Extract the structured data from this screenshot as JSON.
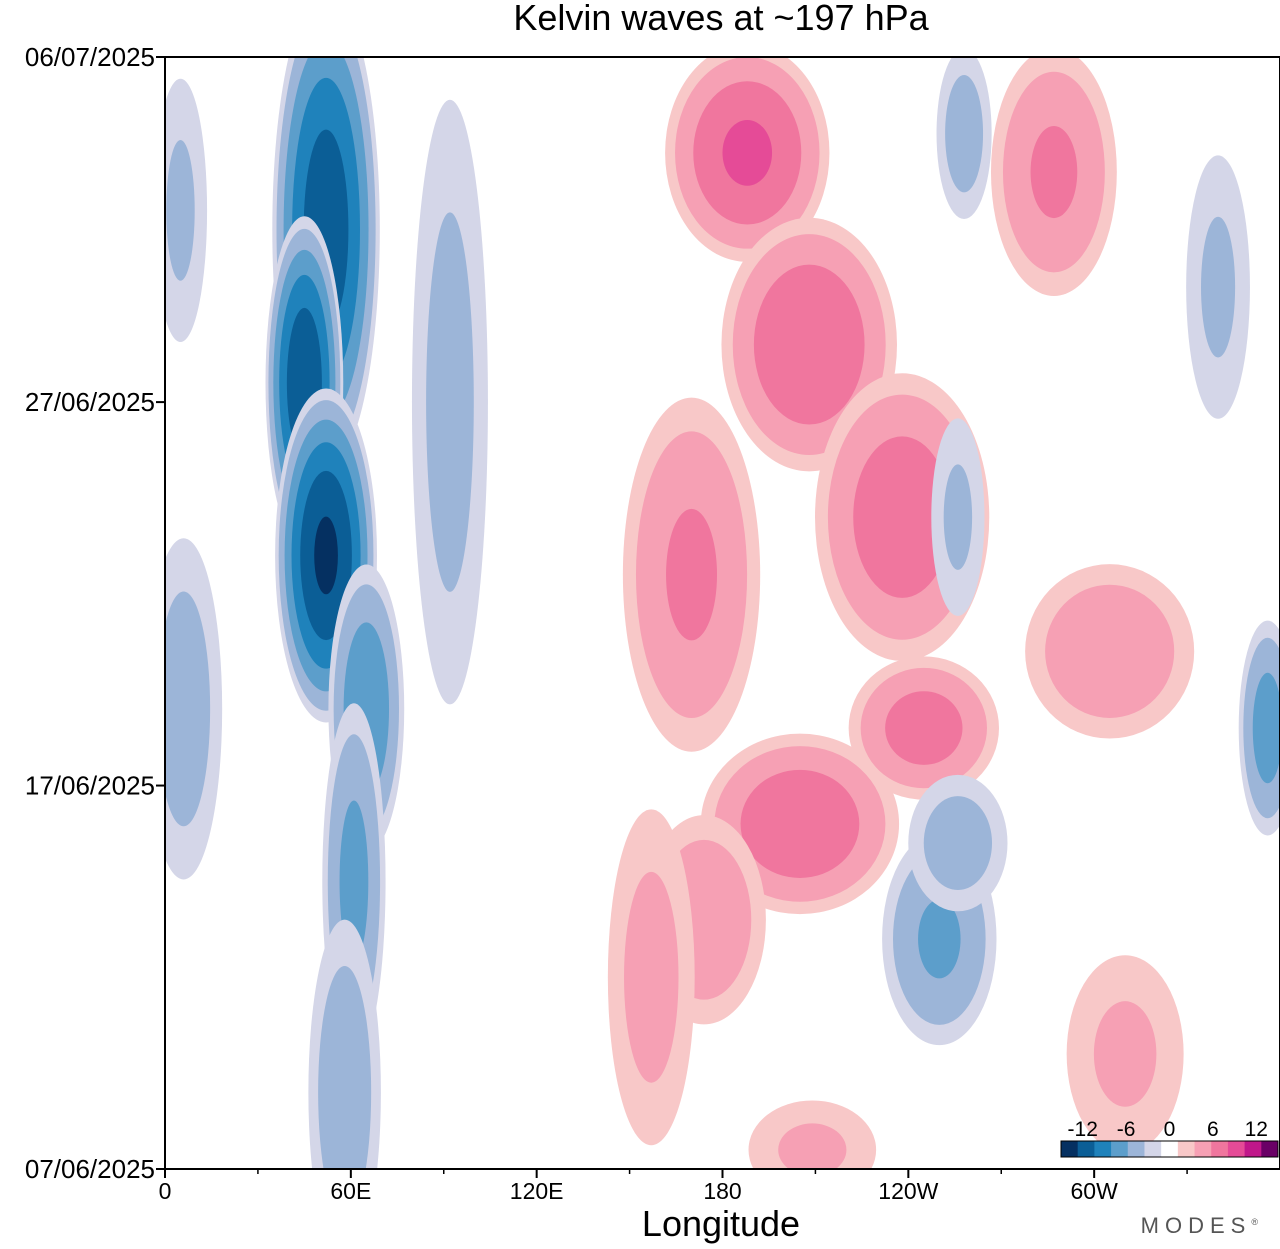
{
  "chart_data": {
    "type": "heatmap",
    "title": "Kelvin waves at ~197 hPa",
    "xlabel": "Longitude",
    "ylabel": "",
    "x_ticks": [
      {
        "label": "0",
        "lon": 0
      },
      {
        "label": "60E",
        "lon": 60
      },
      {
        "label": "120E",
        "lon": 120
      },
      {
        "label": "180",
        "lon": 180
      },
      {
        "label": "120W",
        "lon": 240
      },
      {
        "label": "60W",
        "lon": 300
      }
    ],
    "x_minor_step": 30,
    "xlim": [
      0,
      360
    ],
    "y_ticks": [
      {
        "label": "07/06/2025",
        "day": 0
      },
      {
        "label": "17/06/2025",
        "day": 10
      },
      {
        "label": "27/06/2025",
        "day": 20
      },
      {
        "label": "06/07/2025",
        "day": 29
      }
    ],
    "ylim_days": [
      0,
      29
    ],
    "colorbar": {
      "labels": [
        {
          "label": "-12",
          "value": -12
        },
        {
          "label": "-6",
          "value": -6
        },
        {
          "label": "0",
          "value": 0
        },
        {
          "label": "6",
          "value": 6
        },
        {
          "label": "12",
          "value": 12
        }
      ],
      "levels": [
        -15,
        -12,
        -9,
        -6,
        -3,
        -1,
        1,
        3,
        6,
        9,
        12,
        15
      ],
      "colors": [
        "#053061",
        "#0b5e96",
        "#1f82bb",
        "#5c9ecb",
        "#9cb5d8",
        "#d4d6e8",
        "#ffffff",
        "#f8c8c8",
        "#f6a0b4",
        "#f0769e",
        "#e54b97",
        "#c0178a",
        "#6a0066"
      ]
    },
    "anomalies": [
      {
        "lon": 52,
        "day": 24.5,
        "dlon": 18,
        "ddays": 6.5,
        "amp": -13.5
      },
      {
        "lon": 45,
        "day": 20.5,
        "dlon": 13,
        "ddays": 4.5,
        "amp": -14
      },
      {
        "lon": 52,
        "day": 16,
        "dlon": 17,
        "ddays": 4.5,
        "amp": -15
      },
      {
        "lon": 65,
        "day": 12,
        "dlon": 13,
        "ddays": 4,
        "amp": -8
      },
      {
        "lon": 61,
        "day": 7.5,
        "dlon": 11,
        "ddays": 5,
        "amp": -6.5
      },
      {
        "lon": 58,
        "day": 2,
        "dlon": 13,
        "ddays": 5,
        "amp": -4.5
      },
      {
        "lon": 92,
        "day": 20,
        "dlon": 14,
        "ddays": 9,
        "amp": -3.5
      },
      {
        "lon": 6,
        "day": 12,
        "dlon": 14,
        "ddays": 5,
        "amp": -4
      },
      {
        "lon": 5,
        "day": 25,
        "dlon": 10,
        "ddays": 4,
        "amp": -3
      },
      {
        "lon": 188,
        "day": 26.5,
        "dlon": 28,
        "ddays": 3,
        "amp": 9
      },
      {
        "lon": 208,
        "day": 21.5,
        "dlon": 30,
        "ddays": 3.5,
        "amp": 8.5
      },
      {
        "lon": 238,
        "day": 17,
        "dlon": 30,
        "ddays": 4,
        "amp": 7.5
      },
      {
        "lon": 287,
        "day": 26,
        "dlon": 22,
        "ddays": 3.5,
        "amp": 6
      },
      {
        "lon": 170,
        "day": 15.5,
        "dlon": 24,
        "ddays": 5,
        "amp": 6
      },
      {
        "lon": 205,
        "day": 9,
        "dlon": 34,
        "ddays": 2.5,
        "amp": 8
      },
      {
        "lon": 174,
        "day": 6.5,
        "dlon": 22,
        "ddays": 3,
        "amp": 5
      },
      {
        "lon": 245,
        "day": 11.5,
        "dlon": 26,
        "ddays": 2,
        "amp": 7
      },
      {
        "lon": 305,
        "day": 13.5,
        "dlon": 30,
        "ddays": 2.5,
        "amp": 5
      },
      {
        "lon": 157,
        "day": 5,
        "dlon": 16,
        "ddays": 5,
        "amp": 3.5
      },
      {
        "lon": 209,
        "day": 0.5,
        "dlon": 24,
        "ddays": 1.5,
        "amp": 3
      },
      {
        "lon": 310,
        "day": 3,
        "dlon": 22,
        "ddays": 3,
        "amp": 3
      },
      {
        "lon": 250,
        "day": 6,
        "dlon": 20,
        "ddays": 3,
        "amp": -6
      },
      {
        "lon": 256,
        "day": 8.5,
        "dlon": 18,
        "ddays": 2,
        "amp": -4
      },
      {
        "lon": 356,
        "day": 11.5,
        "dlon": 10,
        "ddays": 3,
        "amp": -7
      },
      {
        "lon": 258,
        "day": 27,
        "dlon": 10,
        "ddays": 2.5,
        "amp": -4
      },
      {
        "lon": 340,
        "day": 23,
        "dlon": 12,
        "ddays": 4,
        "amp": -3
      },
      {
        "lon": 256,
        "day": 17,
        "dlon": 10,
        "ddays": 3,
        "amp": -3
      }
    ]
  },
  "logo": {
    "text": "MODES",
    "mark": "®"
  }
}
